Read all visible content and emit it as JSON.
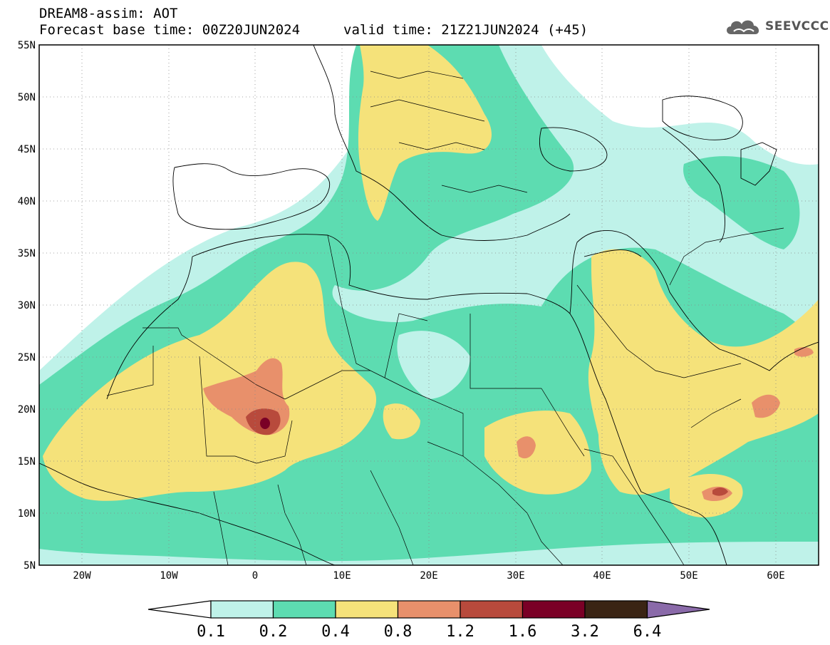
{
  "header": {
    "title": "DREAM8-assim: AOT",
    "base_time": "Forecast base time: 00Z20JUN2024",
    "valid_time": "valid time: 21Z21JUN2024 (+45)"
  },
  "logo": {
    "text": "SEEVCCC",
    "icon": "cloud-icon"
  },
  "map": {
    "variable": "AOT",
    "lat_range": [
      5,
      55
    ],
    "lon_range": [
      -25,
      65
    ],
    "lat_ticks": [
      "55N",
      "50N",
      "45N",
      "40N",
      "35N",
      "30N",
      "25N",
      "20N",
      "15N",
      "10N",
      "5N"
    ],
    "lon_ticks": [
      "20W",
      "10W",
      "0",
      "10E",
      "20E",
      "30E",
      "40E",
      "50E",
      "60E"
    ],
    "gridlines": true
  },
  "colorbar": {
    "labels": [
      "0.1",
      "0.2",
      "0.4",
      "0.8",
      "1.2",
      "1.6",
      "3.2",
      "6.4"
    ],
    "colors": [
      "#ffffff",
      "#bff2e9",
      "#5ddcb1",
      "#f5e27a",
      "#e8906b",
      "#b84a3c",
      "#7a0026",
      "#3a2414",
      "#8a6aa9"
    ]
  },
  "colors": {
    "lev1": "#bff2e9",
    "lev2": "#5ddcb1",
    "lev3": "#f5e27a",
    "lev4": "#e8906b",
    "lev5": "#b84a3c",
    "lev6": "#7a0026"
  }
}
